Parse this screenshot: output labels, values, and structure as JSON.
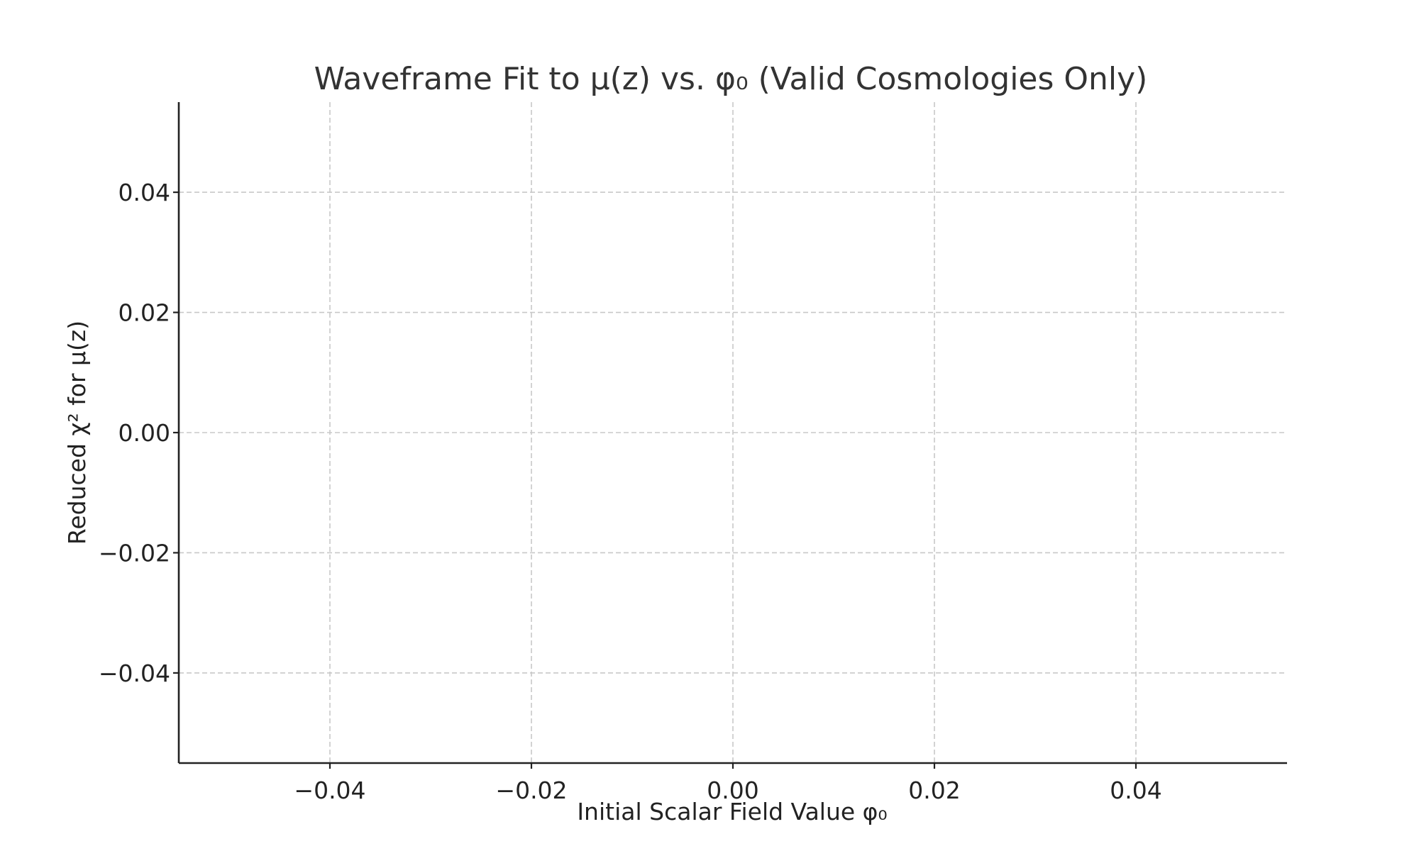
{
  "chart_data": {
    "type": "scatter",
    "title": "Waveframe Fit to μ(z) vs. φ₀ (Valid Cosmologies Only)",
    "xlabel": "Initial Scalar Field Value φ₀",
    "ylabel": "Reduced χ² for μ(z)",
    "xlim": [
      -0.055,
      0.055
    ],
    "ylim": [
      -0.055,
      0.055
    ],
    "x_ticks": [
      -0.04,
      -0.02,
      0.0,
      0.02,
      0.04
    ],
    "y_ticks": [
      -0.04,
      -0.02,
      0.0,
      0.02,
      0.04
    ],
    "x_tick_labels": [
      "−0.04",
      "−0.02",
      "0.00",
      "0.02",
      "0.04"
    ],
    "y_tick_labels": [
      "−0.04",
      "−0.02",
      "0.00",
      "0.02",
      "0.04"
    ],
    "grid": true,
    "grid_style": "dashed",
    "series": [
      {
        "x": [],
        "y": []
      }
    ],
    "colors": {
      "grid": "#c8c8c8",
      "axis": "#222222",
      "title": "#333333"
    }
  }
}
